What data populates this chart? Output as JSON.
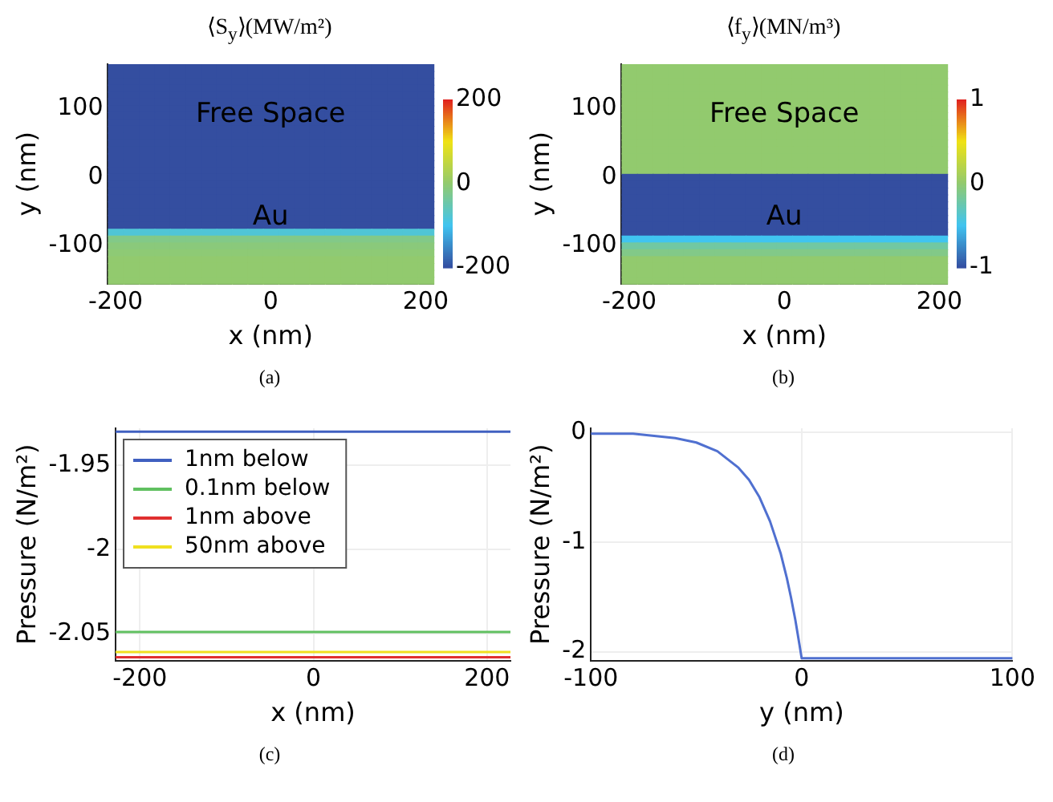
{
  "chart_data": [
    {
      "type": "heatmap",
      "title": "⟨S$_{y}$⟩(MW/m²)",
      "xlabel": "x (nm)",
      "ylabel": "y (nm)",
      "categories": [
        "-200",
        null,
        null,
        null,
        null,
        null,
        null,
        null,
        null,
        null,
        "0",
        null,
        null,
        null,
        null,
        null,
        null,
        null,
        null,
        null,
        "200"
      ],
      "y_categories": [
        null,
        null,
        null,
        null,
        null,
        null,
        "100",
        null,
        null,
        null,
        null,
        null,
        null,
        null,
        null,
        null,
        "0",
        null,
        null,
        null,
        null,
        null,
        null,
        null,
        null,
        null,
        "-100",
        null,
        null,
        null,
        null,
        null
      ],
      "cells": [
        [
          -200,
          -200,
          -200,
          -200,
          -200,
          -200,
          -200,
          -200,
          -200,
          -200,
          -200,
          -200,
          -200,
          -200,
          -200,
          -200,
          -200,
          -200,
          -200,
          -200,
          -200
        ],
        [
          -200,
          -200,
          -200,
          -200,
          -200,
          -200,
          -200,
          -200,
          -200,
          -200,
          -200,
          -200,
          -200,
          -200,
          -200,
          -200,
          -200,
          -200,
          -200,
          -200,
          -200
        ],
        [
          -200,
          -200,
          -200,
          -200,
          -200,
          -200,
          -200,
          -200,
          -200,
          -200,
          -200,
          -200,
          -200,
          -200,
          -200,
          -200,
          -200,
          -200,
          -200,
          -200,
          -200
        ],
        [
          -200,
          -200,
          -200,
          -200,
          -200,
          -200,
          -200,
          -200,
          -200,
          -200,
          -200,
          -200,
          -200,
          -200,
          -200,
          -200,
          -200,
          -200,
          -200,
          -200,
          -200
        ],
        [
          -200,
          -200,
          -200,
          -200,
          -200,
          -200,
          -200,
          -200,
          -200,
          -200,
          -200,
          -200,
          -200,
          -200,
          -200,
          -200,
          -200,
          -200,
          -200,
          -200,
          -200
        ],
        [
          -200,
          -200,
          -200,
          -200,
          -200,
          -200,
          -200,
          -200,
          -200,
          -200,
          -200,
          -200,
          -200,
          -200,
          -200,
          -200,
          -200,
          -200,
          -200,
          -200,
          -200
        ],
        [
          -200,
          -200,
          -200,
          -200,
          -200,
          -200,
          -200,
          -200,
          -200,
          -200,
          -200,
          -200,
          -200,
          -200,
          -200,
          -200,
          -200,
          -200,
          -200,
          -200,
          -200
        ],
        [
          -200,
          -200,
          -200,
          -200,
          -200,
          -200,
          -200,
          -200,
          -200,
          -200,
          -200,
          -200,
          -200,
          -200,
          -200,
          -200,
          -200,
          -200,
          -200,
          -200,
          -200
        ],
        [
          -200,
          -200,
          -200,
          -200,
          -200,
          -200,
          -200,
          -200,
          -200,
          -200,
          -200,
          -200,
          -200,
          -200,
          -200,
          -200,
          -200,
          -200,
          -200,
          -200,
          -200
        ],
        [
          -200,
          -200,
          -200,
          -200,
          -200,
          -200,
          -200,
          -200,
          -200,
          -200,
          -200,
          -200,
          -200,
          -200,
          -200,
          -200,
          -200,
          -200,
          -200,
          -200,
          -200
        ],
        [
          -200,
          -200,
          -200,
          -200,
          -200,
          -200,
          -200,
          -200,
          -200,
          -200,
          -200,
          -200,
          -200,
          -200,
          -200,
          -200,
          -200,
          -200,
          -200,
          -200,
          -200
        ],
        [
          -200,
          -200,
          -200,
          -200,
          -200,
          -200,
          -200,
          -200,
          -200,
          -200,
          -200,
          -200,
          -200,
          -200,
          -200,
          -200,
          -200,
          -200,
          -200,
          -200,
          -200
        ],
        [
          -200,
          -200,
          -200,
          -200,
          -200,
          -200,
          -200,
          -200,
          -200,
          -200,
          -200,
          -200,
          -200,
          -200,
          -200,
          -200,
          -200,
          -200,
          -200,
          -200,
          -200
        ],
        [
          -200,
          -200,
          -200,
          -200,
          -200,
          -200,
          -200,
          -200,
          -200,
          -200,
          -200,
          -200,
          -200,
          -200,
          -200,
          -200,
          -200,
          -200,
          -200,
          -200,
          -200
        ],
        [
          -200,
          -200,
          -200,
          -200,
          -200,
          -200,
          -200,
          -200,
          -200,
          -200,
          -200,
          -200,
          -200,
          -200,
          -200,
          -200,
          -200,
          -200,
          -200,
          -200,
          -200
        ],
        [
          -200,
          -200,
          -200,
          -200,
          -200,
          -200,
          -200,
          -200,
          -200,
          -200,
          -200,
          -200,
          -200,
          -200,
          -200,
          -200,
          -200,
          -200,
          -200,
          -200,
          -200
        ],
        [
          -200,
          -200,
          -200,
          -200,
          -200,
          -200,
          -200,
          -200,
          -200,
          -200,
          -200,
          -200,
          -200,
          -200,
          -200,
          -200,
          -200,
          -200,
          -200,
          -200,
          -200
        ],
        [
          -200,
          -200,
          -200,
          -200,
          -200,
          -200,
          -200,
          -200,
          -200,
          -200,
          -200,
          -200,
          -200,
          -200,
          -200,
          -200,
          -200,
          -200,
          -200,
          -200,
          -200
        ],
        [
          -200,
          -200,
          -200,
          -200,
          -200,
          -200,
          -200,
          -200,
          -200,
          -200,
          -200,
          -200,
          -200,
          -200,
          -200,
          -200,
          -200,
          -200,
          -200,
          -200,
          -200
        ],
        [
          -200,
          -200,
          -200,
          -200,
          -200,
          -200,
          -200,
          -200,
          -200,
          -200,
          -200,
          -200,
          -200,
          -200,
          -200,
          -200,
          -200,
          -200,
          -200,
          -200,
          -200
        ],
        [
          -200,
          -200,
          -200,
          -200,
          -200,
          -200,
          -200,
          -200,
          -200,
          -200,
          -200,
          -200,
          -200,
          -200,
          -200,
          -200,
          -200,
          -200,
          -200,
          -200,
          -200
        ],
        [
          -200,
          -200,
          -200,
          -200,
          -200,
          -200,
          -200,
          -200,
          -200,
          -200,
          -200,
          -200,
          -200,
          -200,
          -200,
          -200,
          -200,
          -200,
          -200,
          -200,
          -200
        ],
        [
          -200,
          -200,
          -200,
          -200,
          -200,
          -200,
          -200,
          -200,
          -200,
          -200,
          -200,
          -200,
          -200,
          -200,
          -200,
          -200,
          -200,
          -200,
          -200,
          -200,
          -200
        ],
        [
          -200,
          -200,
          -200,
          -200,
          -200,
          -200,
          -200,
          -200,
          -200,
          -200,
          -200,
          -200,
          -200,
          -200,
          -200,
          -200,
          -200,
          -200,
          -200,
          -200,
          -200
        ],
        [
          -80,
          -80,
          -80,
          -80,
          -80,
          -80,
          -80,
          -80,
          -80,
          -80,
          -80,
          -80,
          -80,
          -80,
          -80,
          -80,
          -80,
          -80,
          -80,
          -80,
          -80
        ],
        [
          -20,
          -20,
          -20,
          -20,
          -20,
          -20,
          -20,
          -20,
          -20,
          -20,
          -20,
          -20,
          -20,
          -20,
          -20,
          -20,
          -20,
          -20,
          -20,
          -20,
          -20
        ],
        [
          -10,
          -10,
          -10,
          -10,
          -10,
          -10,
          -10,
          -10,
          -10,
          -10,
          -10,
          -10,
          -10,
          -10,
          -10,
          -10,
          -10,
          -10,
          -10,
          -10,
          -10
        ],
        [
          -5,
          -5,
          -5,
          -5,
          -5,
          -5,
          -5,
          -5,
          -5,
          -5,
          -5,
          -5,
          -5,
          -5,
          -5,
          -5,
          -5,
          -5,
          -5,
          -5,
          -5
        ],
        [
          0,
          0,
          0,
          0,
          0,
          0,
          0,
          0,
          0,
          0,
          0,
          0,
          0,
          0,
          0,
          0,
          0,
          0,
          0,
          0,
          0
        ],
        [
          0,
          0,
          0,
          0,
          0,
          0,
          0,
          0,
          0,
          0,
          0,
          0,
          0,
          0,
          0,
          0,
          0,
          0,
          0,
          0,
          0
        ],
        [
          0,
          0,
          0,
          0,
          0,
          0,
          0,
          0,
          0,
          0,
          0,
          0,
          0,
          0,
          0,
          0,
          0,
          0,
          0,
          0,
          0
        ],
        [
          0,
          0,
          0,
          0,
          0,
          0,
          0,
          0,
          0,
          0,
          0,
          0,
          0,
          0,
          0,
          0,
          0,
          0,
          0,
          0,
          0
        ]
      ],
      "clim": [
        -200,
        200
      ],
      "cticks": [
        -200,
        0,
        200
      ],
      "annotations": [
        "Free Space",
        "Au",
        "(a)"
      ]
    },
    {
      "type": "heatmap",
      "title": "⟨f$_{y}$⟩(MN/m³)",
      "xlabel": "x (nm)",
      "ylabel": "y (nm)",
      "categories": [
        "-200",
        null,
        null,
        null,
        null,
        null,
        null,
        null,
        null,
        null,
        "0",
        null,
        null,
        null,
        null,
        null,
        null,
        null,
        null,
        null,
        "200"
      ],
      "y_categories": [
        null,
        null,
        null,
        null,
        null,
        null,
        "100",
        null,
        null,
        null,
        null,
        null,
        null,
        null,
        null,
        null,
        "0",
        null,
        null,
        null,
        null,
        null,
        null,
        null,
        null,
        null,
        "-100",
        null,
        null,
        null,
        null,
        null
      ],
      "cells": [
        [
          0,
          0,
          0,
          0,
          0,
          0,
          0,
          0,
          0,
          0,
          0,
          0,
          0,
          0,
          0,
          0,
          0,
          0,
          0,
          0,
          0
        ],
        [
          0,
          0,
          0,
          0,
          0,
          0,
          0,
          0,
          0,
          0,
          0,
          0,
          0,
          0,
          0,
          0,
          0,
          0,
          0,
          0,
          0
        ],
        [
          0,
          0,
          0,
          0,
          0,
          0,
          0,
          0,
          0,
          0,
          0,
          0,
          0,
          0,
          0,
          0,
          0,
          0,
          0,
          0,
          0
        ],
        [
          0,
          0,
          0,
          0,
          0,
          0,
          0,
          0,
          0,
          0,
          0,
          0,
          0,
          0,
          0,
          0,
          0,
          0,
          0,
          0,
          0
        ],
        [
          0,
          0,
          0,
          0,
          0,
          0,
          0,
          0,
          0,
          0,
          0,
          0,
          0,
          0,
          0,
          0,
          0,
          0,
          0,
          0,
          0
        ],
        [
          0,
          0,
          0,
          0,
          0,
          0,
          0,
          0,
          0,
          0,
          0,
          0,
          0,
          0,
          0,
          0,
          0,
          0,
          0,
          0,
          0
        ],
        [
          0,
          0,
          0,
          0,
          0,
          0,
          0,
          0,
          0,
          0,
          0,
          0,
          0,
          0,
          0,
          0,
          0,
          0,
          0,
          0,
          0
        ],
        [
          0,
          0,
          0,
          0,
          0,
          0,
          0,
          0,
          0,
          0,
          0,
          0,
          0,
          0,
          0,
          0,
          0,
          0,
          0,
          0,
          0
        ],
        [
          0,
          0,
          0,
          0,
          0,
          0,
          0,
          0,
          0,
          0,
          0,
          0,
          0,
          0,
          0,
          0,
          0,
          0,
          0,
          0,
          0
        ],
        [
          0,
          0,
          0,
          0,
          0,
          0,
          0,
          0,
          0,
          0,
          0,
          0,
          0,
          0,
          0,
          0,
          0,
          0,
          0,
          0,
          0
        ],
        [
          0,
          0,
          0,
          0,
          0,
          0,
          0,
          0,
          0,
          0,
          0,
          0,
          0,
          0,
          0,
          0,
          0,
          0,
          0,
          0,
          0
        ],
        [
          0,
          0,
          0,
          0,
          0,
          0,
          0,
          0,
          0,
          0,
          0,
          0,
          0,
          0,
          0,
          0,
          0,
          0,
          0,
          0,
          0
        ],
        [
          0,
          0,
          0,
          0,
          0,
          0,
          0,
          0,
          0,
          0,
          0,
          0,
          0,
          0,
          0,
          0,
          0,
          0,
          0,
          0,
          0
        ],
        [
          0,
          0,
          0,
          0,
          0,
          0,
          0,
          0,
          0,
          0,
          0,
          0,
          0,
          0,
          0,
          0,
          0,
          0,
          0,
          0,
          0
        ],
        [
          0,
          0,
          0,
          0,
          0,
          0,
          0,
          0,
          0,
          0,
          0,
          0,
          0,
          0,
          0,
          0,
          0,
          0,
          0,
          0,
          0
        ],
        [
          0,
          0,
          0,
          0,
          0,
          0,
          0,
          0,
          0,
          0,
          0,
          0,
          0,
          0,
          0,
          0,
          0,
          0,
          0,
          0,
          0
        ],
        [
          -1,
          -1,
          -1,
          -1,
          -1,
          -1,
          -1,
          -1,
          -1,
          -1,
          -1,
          -1,
          -1,
          -1,
          -1,
          -1,
          -1,
          -1,
          -1,
          -1,
          -1
        ],
        [
          -1,
          -1,
          -1,
          -1,
          -1,
          -1,
          -1,
          -1,
          -1,
          -1,
          -1,
          -1,
          -1,
          -1,
          -1,
          -1,
          -1,
          -1,
          -1,
          -1,
          -1
        ],
        [
          -1,
          -1,
          -1,
          -1,
          -1,
          -1,
          -1,
          -1,
          -1,
          -1,
          -1,
          -1,
          -1,
          -1,
          -1,
          -1,
          -1,
          -1,
          -1,
          -1,
          -1
        ],
        [
          -1,
          -1,
          -1,
          -1,
          -1,
          -1,
          -1,
          -1,
          -1,
          -1,
          -1,
          -1,
          -1,
          -1,
          -1,
          -1,
          -1,
          -1,
          -1,
          -1,
          -1
        ],
        [
          -1,
          -1,
          -1,
          -1,
          -1,
          -1,
          -1,
          -1,
          -1,
          -1,
          -1,
          -1,
          -1,
          -1,
          -1,
          -1,
          -1,
          -1,
          -1,
          -1,
          -1
        ],
        [
          -1,
          -1,
          -1,
          -1,
          -1,
          -1,
          -1,
          -1,
          -1,
          -1,
          -1,
          -1,
          -1,
          -1,
          -1,
          -1,
          -1,
          -1,
          -1,
          -1,
          -1
        ],
        [
          -1,
          -1,
          -1,
          -1,
          -1,
          -1,
          -1,
          -1,
          -1,
          -1,
          -1,
          -1,
          -1,
          -1,
          -1,
          -1,
          -1,
          -1,
          -1,
          -1,
          -1
        ],
        [
          -1,
          -1,
          -1,
          -1,
          -1,
          -1,
          -1,
          -1,
          -1,
          -1,
          -1,
          -1,
          -1,
          -1,
          -1,
          -1,
          -1,
          -1,
          -1,
          -1,
          -1
        ],
        [
          -1,
          -1,
          -1,
          -1,
          -1,
          -1,
          -1,
          -1,
          -1,
          -1,
          -1,
          -1,
          -1,
          -1,
          -1,
          -1,
          -1,
          -1,
          -1,
          -1,
          -1
        ],
        [
          -0.5,
          -0.5,
          -0.5,
          -0.5,
          -0.5,
          -0.5,
          -0.5,
          -0.5,
          -0.5,
          -0.5,
          -0.5,
          -0.5,
          -0.5,
          -0.5,
          -0.5,
          -0.5,
          -0.5,
          -0.5,
          -0.5,
          -0.5,
          -0.5
        ],
        [
          -0.2,
          -0.2,
          -0.2,
          -0.2,
          -0.2,
          -0.2,
          -0.2,
          -0.2,
          -0.2,
          -0.2,
          -0.2,
          -0.2,
          -0.2,
          -0.2,
          -0.2,
          -0.2,
          -0.2,
          -0.2,
          -0.2,
          -0.2,
          -0.2
        ],
        [
          -0.1,
          -0.1,
          -0.1,
          -0.1,
          -0.1,
          -0.1,
          -0.1,
          -0.1,
          -0.1,
          -0.1,
          -0.1,
          -0.1,
          -0.1,
          -0.1,
          -0.1,
          -0.1,
          -0.1,
          -0.1,
          -0.1,
          -0.1,
          -0.1
        ],
        [
          0,
          0,
          0,
          0,
          0,
          0,
          0,
          0,
          0,
          0,
          0,
          0,
          0,
          0,
          0,
          0,
          0,
          0,
          0,
          0,
          0
        ],
        [
          0,
          0,
          0,
          0,
          0,
          0,
          0,
          0,
          0,
          0,
          0,
          0,
          0,
          0,
          0,
          0,
          0,
          0,
          0,
          0,
          0
        ],
        [
          0,
          0,
          0,
          0,
          0,
          0,
          0,
          0,
          0,
          0,
          0,
          0,
          0,
          0,
          0,
          0,
          0,
          0,
          0,
          0,
          0
        ],
        [
          0,
          0,
          0,
          0,
          0,
          0,
          0,
          0,
          0,
          0,
          0,
          0,
          0,
          0,
          0,
          0,
          0,
          0,
          0,
          0,
          0
        ]
      ],
      "clim": [
        -1,
        1
      ],
      "cticks": [
        -1,
        0,
        1
      ],
      "annotations": [
        "Free Space",
        "Au",
        "(b)"
      ]
    },
    {
      "type": "line",
      "xlabel": "x (nm)",
      "ylabel": "Pressure (N/m²)",
      "x": [
        -228,
        227
      ],
      "series": [
        {
          "name": "1nm below",
          "color": "#4060c0",
          "values": [
            -1.93,
            -1.93
          ]
        },
        {
          "name": "0.1nm below",
          "color": "#60c060",
          "values": [
            -2.049,
            -2.049
          ]
        },
        {
          "name": "1nm above",
          "color": "#e03030",
          "values": [
            -2.064,
            -2.064
          ]
        },
        {
          "name": "50nm above",
          "color": "#f0e020",
          "values": [
            -2.061,
            -2.061
          ]
        }
      ],
      "xlim": [
        -228,
        227
      ],
      "xticks": [
        -200,
        0,
        200
      ],
      "ylim": [
        -2.066,
        -1.928
      ],
      "yticks": [
        -1.95,
        -2,
        -2.05
      ],
      "grid": true,
      "legend": "top left",
      "annotations": [
        "(c)"
      ]
    },
    {
      "type": "line",
      "xlabel": "y (nm)",
      "ylabel": "Pressure (N/m²)",
      "x": [
        -100,
        -80,
        -60,
        -50,
        -40,
        -30,
        -25,
        -20,
        -15,
        -10,
        -7,
        -5,
        -3,
        -1,
        0,
        100
      ],
      "series": [
        {
          "color": "#5070d0",
          "values": [
            -0.01,
            -0.01,
            -0.05,
            -0.09,
            -0.17,
            -0.32,
            -0.43,
            -0.59,
            -0.81,
            -1.1,
            -1.33,
            -1.51,
            -1.71,
            -1.94,
            -2.06,
            -2.06
          ]
        }
      ],
      "xlim": [
        -100,
        100
      ],
      "xticks": [
        -100,
        0,
        100
      ],
      "ylim": [
        -2.08,
        0.04
      ],
      "yticks": [
        -2,
        -1,
        0
      ],
      "grid": true,
      "annotations": [
        "(d)"
      ]
    }
  ]
}
